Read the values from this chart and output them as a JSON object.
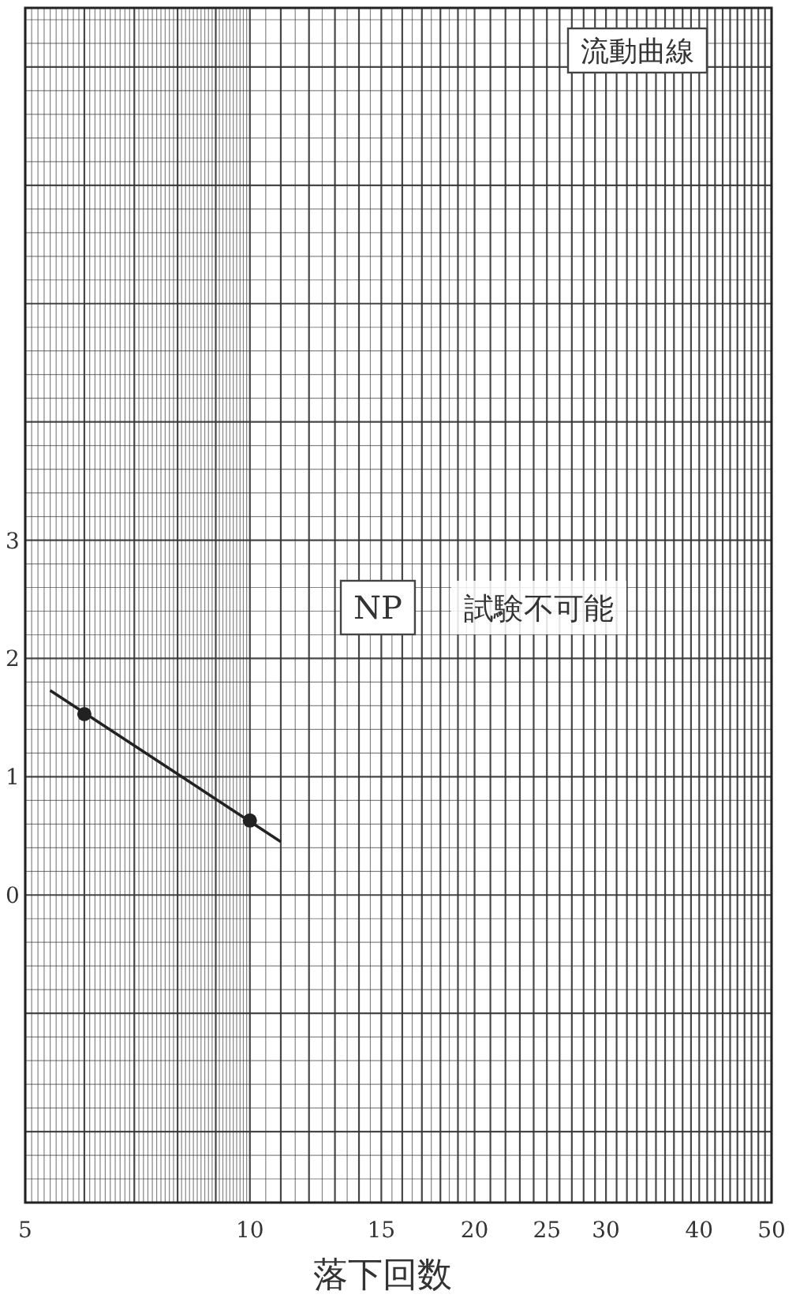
{
  "chart_data": {
    "type": "scatter",
    "xlabel": "落下回数",
    "annotations": [
      "流動曲線",
      "NP",
      "試験不可能"
    ],
    "series": [
      {
        "type": "scatter",
        "x": [
          6,
          10
        ],
        "values": [
          1.53,
          0.63
        ],
        "color": "#222222",
        "marker": "circle"
      },
      {
        "type": "line",
        "x": [
          5.4,
          11
        ],
        "values": [
          1.73,
          0.45
        ],
        "color": "#222222",
        "marker": "none"
      }
    ],
    "log": "x",
    "xlim": [
      5,
      50
    ],
    "xticks": [
      5,
      10,
      15,
      20,
      25,
      30,
      40,
      50
    ],
    "ylim": [
      -2.6,
      7.5
    ],
    "yticks": [
      {
        "value": 3,
        "label": "3"
      },
      {
        "value": 2,
        "label": "2"
      },
      {
        "value": 1,
        "label": "1"
      },
      {
        "value": 0,
        "label": "0"
      }
    ],
    "grid": true
  }
}
